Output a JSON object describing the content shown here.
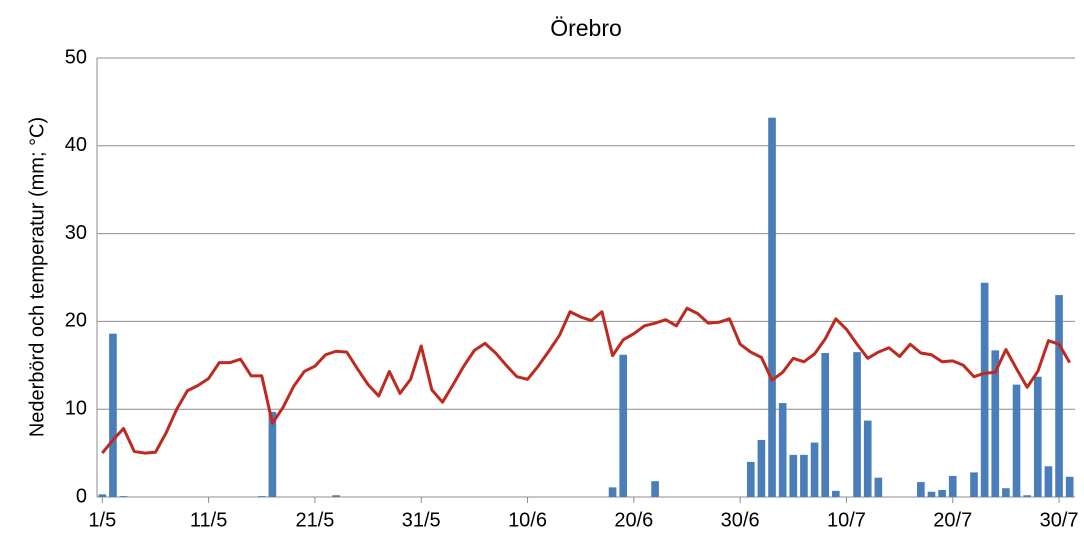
{
  "chart_data": {
    "type": "bar",
    "title": "Örebro",
    "ylabel": "Nederbörd och temperatur (mm; °C)",
    "categories": [
      "1/5",
      null,
      null,
      null,
      null,
      null,
      null,
      null,
      null,
      null,
      "11/5",
      null,
      null,
      null,
      null,
      null,
      null,
      null,
      null,
      null,
      "21/5",
      null,
      null,
      null,
      null,
      null,
      null,
      null,
      null,
      null,
      "31/5",
      null,
      null,
      null,
      null,
      null,
      null,
      null,
      null,
      null,
      "10/6",
      null,
      null,
      null,
      null,
      null,
      null,
      null,
      null,
      null,
      "20/6",
      null,
      null,
      null,
      null,
      null,
      null,
      null,
      null,
      null,
      "30/6",
      null,
      null,
      null,
      null,
      null,
      null,
      null,
      null,
      null,
      "10/7",
      null,
      null,
      null,
      null,
      null,
      null,
      null,
      null,
      null,
      "20/7",
      null,
      null,
      null,
      null,
      null,
      null,
      null,
      null,
      null,
      "30/7",
      null
    ],
    "series": [
      {
        "type": "bar",
        "color": "#4a7ebb",
        "values": [
          0.3,
          18.6,
          0.1,
          0,
          0,
          0,
          0,
          0,
          0,
          0,
          0,
          0,
          0,
          0,
          0,
          0.1,
          9.7,
          0,
          0,
          0,
          0,
          0,
          0.2,
          0,
          0,
          0,
          0,
          0,
          0,
          0,
          0,
          0,
          0,
          0,
          0,
          0,
          0,
          0,
          0,
          0,
          0,
          0,
          0,
          0,
          0,
          0,
          0,
          0,
          1.1,
          16.2,
          0,
          0,
          1.8,
          0,
          0,
          0,
          0,
          0,
          0,
          0,
          0,
          4.0,
          6.5,
          43.2,
          10.7,
          4.8,
          4.8,
          6.2,
          16.4,
          0.7,
          0,
          16.5,
          8.7,
          2.2,
          0,
          0,
          0,
          1.7,
          0.6,
          0.8,
          2.4,
          0,
          2.8,
          24.4,
          16.7,
          1.0,
          12.8,
          0.2,
          13.7,
          3.5,
          23.0,
          2.3
        ]
      },
      {
        "type": "line",
        "color": "#be2a1f",
        "values": [
          5.0,
          6.5,
          7.8,
          5.2,
          5.0,
          5.1,
          7.3,
          10.0,
          12.1,
          12.7,
          13.5,
          15.3,
          15.3,
          15.7,
          13.8,
          13.8,
          8.4,
          10.2,
          12.6,
          14.3,
          14.9,
          16.2,
          16.6,
          16.5,
          14.6,
          12.8,
          11.5,
          14.3,
          11.8,
          13.4,
          17.2,
          12.2,
          10.8,
          12.8,
          14.9,
          16.7,
          17.5,
          16.4,
          15.0,
          13.7,
          13.4,
          14.9,
          16.6,
          18.4,
          21.1,
          20.5,
          20.1,
          21.1,
          16.1,
          17.9,
          18.6,
          19.5,
          19.8,
          20.2,
          19.5,
          21.5,
          20.9,
          19.8,
          19.9,
          20.3,
          17.4,
          16.5,
          15.9,
          13.3,
          14.2,
          15.8,
          15.4,
          16.3,
          18.0,
          20.3,
          19.1,
          17.4,
          15.8,
          16.5,
          17.0,
          16.0,
          17.4,
          16.4,
          16.2,
          15.4,
          15.5,
          15.0,
          13.7,
          14.1,
          14.2,
          16.8,
          14.6,
          12.5,
          14.3,
          17.8,
          17.4,
          15.3
        ]
      }
    ],
    "ylim": [
      0,
      50
    ],
    "yticks": [
      0,
      10,
      20,
      30,
      40,
      50
    ],
    "grid": true
  }
}
